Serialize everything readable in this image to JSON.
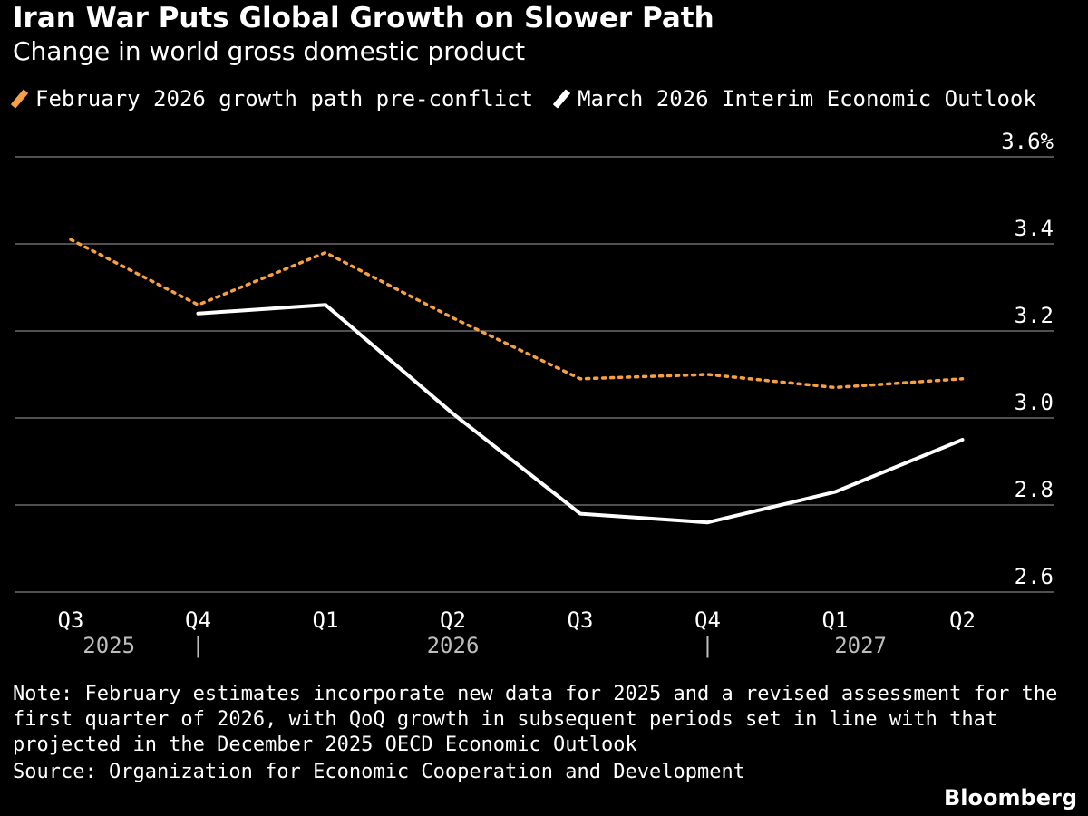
{
  "chart_data": {
    "type": "line",
    "title": "Iran War Puts Global Growth on Slower Path",
    "subtitle": "Change in world gross domestic product",
    "categories": [
      "Q3",
      "Q4",
      "Q1",
      "Q2",
      "Q3",
      "Q4",
      "Q1",
      "Q2"
    ],
    "year_labels": [
      {
        "label": "2025",
        "center_index": 0.3
      },
      {
        "label": "2026",
        "center_index": 3.0
      },
      {
        "label": "2027",
        "center_index": 6.2
      }
    ],
    "year_separators": [
      1,
      5
    ],
    "separator_glyph": "|",
    "series": [
      {
        "name": "February 2026 growth path pre-conflict",
        "color": "#f7a043",
        "style": "dotted",
        "values": [
          3.41,
          3.26,
          3.38,
          3.23,
          3.09,
          3.1,
          3.07,
          3.09
        ]
      },
      {
        "name": "March 2026 Interim Economic Outlook",
        "color": "#ffffff",
        "style": "solid",
        "values": [
          null,
          3.24,
          3.26,
          3.01,
          2.78,
          2.76,
          2.83,
          2.95
        ]
      }
    ],
    "ylim": [
      2.6,
      3.6
    ],
    "yticks": [
      {
        "value": 3.6,
        "label": "3.6%"
      },
      {
        "value": 3.4,
        "label": "3.4"
      },
      {
        "value": 3.2,
        "label": "3.2"
      },
      {
        "value": 3.0,
        "label": "3.0"
      },
      {
        "value": 2.8,
        "label": "2.8"
      },
      {
        "value": 2.6,
        "label": "2.6"
      }
    ],
    "xlabel": "",
    "ylabel": "",
    "grid": true,
    "axis_side": "right"
  },
  "note": "Note: February estimates incorporate new data for 2025 and a revised assessment for the first quarter of 2026, with QoQ growth in subsequent periods set in line with that projected in the December 2025 OECD Economic Outlook",
  "source": "Source: Organization for Economic Cooperation and Development",
  "brand": "Bloomberg"
}
